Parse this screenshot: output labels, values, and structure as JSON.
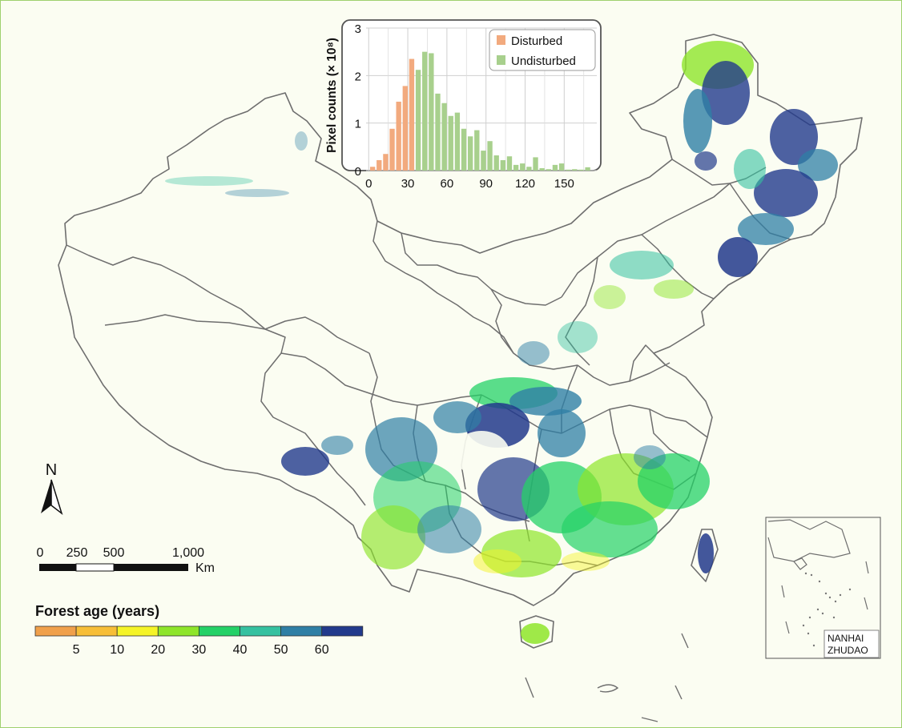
{
  "inset_chart": {
    "y_axis_label": "Pixel counts (× 10⁸)",
    "legend": [
      {
        "label": "Disturbed",
        "color": "#f2aa7e"
      },
      {
        "label": "Undisturbed",
        "color": "#a8d08d"
      }
    ]
  },
  "chart_data": {
    "type": "bar",
    "ylabel": "Pixel counts (× 10⁸)",
    "xlabel": "",
    "x_ticks": [
      0,
      30,
      60,
      90,
      120,
      150
    ],
    "y_ticks": [
      0,
      1,
      2,
      3
    ],
    "xlim": [
      -2,
      175
    ],
    "ylim": [
      0,
      3
    ],
    "grid": true,
    "legend_position": "top-right",
    "series": [
      {
        "name": "Disturbed",
        "color": "#f2aa7e",
        "x": [
          3,
          8,
          13,
          18,
          23,
          28,
          33
        ],
        "values": [
          0.08,
          0.22,
          0.35,
          0.88,
          1.45,
          1.78,
          2.35
        ]
      },
      {
        "name": "Undisturbed",
        "color": "#a8d08d",
        "x": [
          38,
          43,
          48,
          53,
          58,
          63,
          68,
          73,
          78,
          83,
          88,
          93,
          98,
          103,
          108,
          113,
          118,
          123,
          128,
          133,
          138,
          143,
          148,
          153,
          158,
          163,
          168
        ],
        "values": [
          2.12,
          2.5,
          2.47,
          1.62,
          1.42,
          1.15,
          1.22,
          0.88,
          0.72,
          0.85,
          0.42,
          0.62,
          0.32,
          0.22,
          0.3,
          0.12,
          0.15,
          0.08,
          0.28,
          0.05,
          0.03,
          0.12,
          0.15,
          0.02,
          0.03,
          0.02,
          0.07
        ]
      }
    ]
  },
  "north_arrow": {
    "label": "N"
  },
  "scale_bar": {
    "labels": [
      {
        "text": "0",
        "position": 0
      },
      {
        "text": "250",
        "position": 250
      },
      {
        "text": "500",
        "position": 500
      },
      {
        "text": "1,000",
        "position": 1000
      }
    ],
    "unit": "Km"
  },
  "color_legend": {
    "title": "Forest age (years)",
    "colors": [
      "#f0a04b",
      "#f7be37",
      "#f5f426",
      "#8ee52a",
      "#24d167",
      "#35c1a0",
      "#2f7fa5",
      "#223a8c"
    ],
    "tick_labels": [
      "5",
      "10",
      "20",
      "30",
      "40",
      "50",
      "60"
    ]
  },
  "inset_map": {
    "label_line1": "NANHAI",
    "label_line2": "ZHUDAO"
  }
}
